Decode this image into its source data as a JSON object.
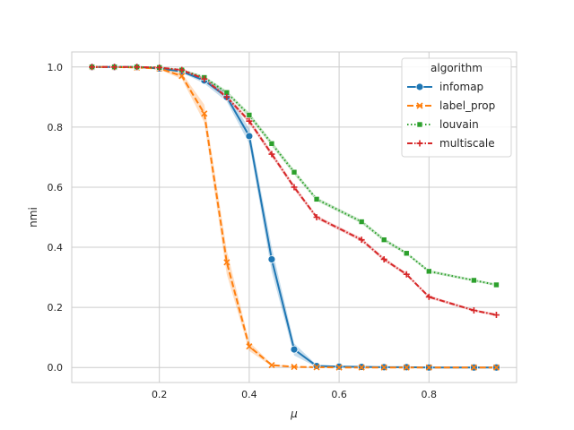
{
  "chart_data": {
    "type": "line",
    "title": "",
    "xlabel": "μ",
    "ylabel": "nmi",
    "xlim": [
      0.005,
      0.995
    ],
    "ylim": [
      -0.05,
      1.05
    ],
    "xticks": [
      0.2,
      0.4,
      0.6,
      0.8
    ],
    "xtick_labels": [
      "0.2",
      "0.4",
      "0.6",
      "0.8"
    ],
    "yticks": [
      0.0,
      0.2,
      0.4,
      0.6,
      0.8,
      1.0
    ],
    "ytick_labels": [
      "0.0",
      "0.2",
      "0.4",
      "0.6",
      "0.8",
      "1.0"
    ],
    "grid": true,
    "legend": {
      "title": "algorithm",
      "placement": "top-right"
    },
    "series": [
      {
        "name": "infomap",
        "color": "#1f77b4",
        "marker": "circle",
        "dash": "solid",
        "x": [
          0.05,
          0.1,
          0.15,
          0.2,
          0.25,
          0.3,
          0.35,
          0.4,
          0.45,
          0.5,
          0.55,
          0.6,
          0.65,
          0.7,
          0.75,
          0.8,
          0.9,
          0.95
        ],
        "y": [
          1.0,
          1.0,
          1.0,
          0.995,
          0.985,
          0.955,
          0.9,
          0.77,
          0.36,
          0.06,
          0.005,
          0.003,
          0.002,
          0.001,
          0.001,
          0.0,
          0.0,
          0.0
        ],
        "band": [
          0.0,
          0.0,
          0.0,
          0.002,
          0.004,
          0.01,
          0.015,
          0.025,
          0.04,
          0.02,
          0.004,
          0.002,
          0.001,
          0.001,
          0.001,
          0.0,
          0.0,
          0.0
        ]
      },
      {
        "name": "label_prop",
        "color": "#ff7f0e",
        "marker": "x",
        "dash": "7,3",
        "x": [
          0.05,
          0.1,
          0.15,
          0.2,
          0.25,
          0.3,
          0.35,
          0.4,
          0.45,
          0.5,
          0.55,
          0.6,
          0.65,
          0.7,
          0.75,
          0.8,
          0.9,
          0.95
        ],
        "y": [
          1.0,
          1.0,
          0.998,
          0.995,
          0.97,
          0.845,
          0.35,
          0.07,
          0.008,
          0.002,
          0.001,
          0.0,
          0.0,
          0.0,
          0.0,
          0.0,
          0.0,
          0.0
        ],
        "band": [
          0.0,
          0.0,
          0.002,
          0.004,
          0.01,
          0.03,
          0.04,
          0.015,
          0.004,
          0.001,
          0.0,
          0.0,
          0.0,
          0.0,
          0.0,
          0.0,
          0.0,
          0.0
        ]
      },
      {
        "name": "louvain",
        "color": "#2ca02c",
        "marker": "square",
        "dash": "1.5,2.5",
        "x": [
          0.05,
          0.1,
          0.15,
          0.2,
          0.25,
          0.3,
          0.35,
          0.4,
          0.45,
          0.5,
          0.55,
          0.65,
          0.7,
          0.75,
          0.8,
          0.9,
          0.95
        ],
        "y": [
          1.0,
          1.0,
          1.0,
          0.998,
          0.99,
          0.965,
          0.915,
          0.84,
          0.745,
          0.65,
          0.56,
          0.485,
          0.425,
          0.38,
          0.32,
          0.29,
          0.275
        ],
        "band": [
          0.0,
          0.0,
          0.0,
          0.001,
          0.003,
          0.005,
          0.006,
          0.008,
          0.008,
          0.008,
          0.006,
          0.006,
          0.006,
          0.005,
          0.005,
          0.004,
          0.004
        ]
      },
      {
        "name": "multiscale",
        "color": "#d62728",
        "marker": "plus",
        "dash": "6,2,1.5,2",
        "x": [
          0.05,
          0.1,
          0.15,
          0.2,
          0.25,
          0.3,
          0.35,
          0.4,
          0.45,
          0.5,
          0.55,
          0.65,
          0.7,
          0.75,
          0.8,
          0.9,
          0.95
        ],
        "y": [
          1.0,
          1.0,
          1.0,
          0.998,
          0.99,
          0.96,
          0.9,
          0.82,
          0.71,
          0.6,
          0.5,
          0.425,
          0.36,
          0.31,
          0.235,
          0.19,
          0.175
        ],
        "band": [
          0.0,
          0.0,
          0.0,
          0.001,
          0.003,
          0.005,
          0.006,
          0.008,
          0.008,
          0.008,
          0.006,
          0.006,
          0.006,
          0.005,
          0.005,
          0.004,
          0.004
        ]
      }
    ]
  }
}
